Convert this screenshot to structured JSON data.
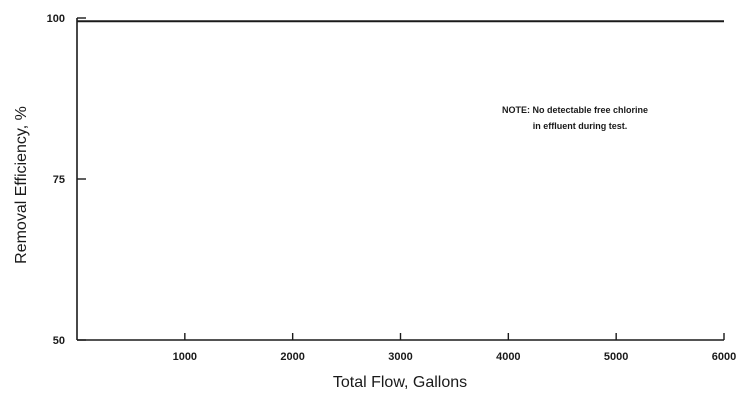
{
  "chart_data": {
    "type": "line",
    "title": "",
    "xlabel": "Total Flow, Gallons",
    "ylabel": "Removal Efficiency, %",
    "xlim": [
      0,
      6000
    ],
    "ylim": [
      50,
      100
    ],
    "xticks": [
      1000,
      2000,
      3000,
      4000,
      5000,
      6000
    ],
    "xtick_labels": [
      "1000",
      "2000",
      "3000",
      "4000",
      "5000",
      "6000"
    ],
    "yticks": [
      50,
      75,
      100
    ],
    "ytick_labels": [
      "50",
      "75",
      "100"
    ],
    "grid": false,
    "series": [
      {
        "x": [
          0,
          6000
        ],
        "y": [
          99.5,
          99.5
        ]
      }
    ],
    "annotation": {
      "lines": [
        "NOTE: No detectable free chlorine",
        "in effluent during test."
      ]
    }
  }
}
